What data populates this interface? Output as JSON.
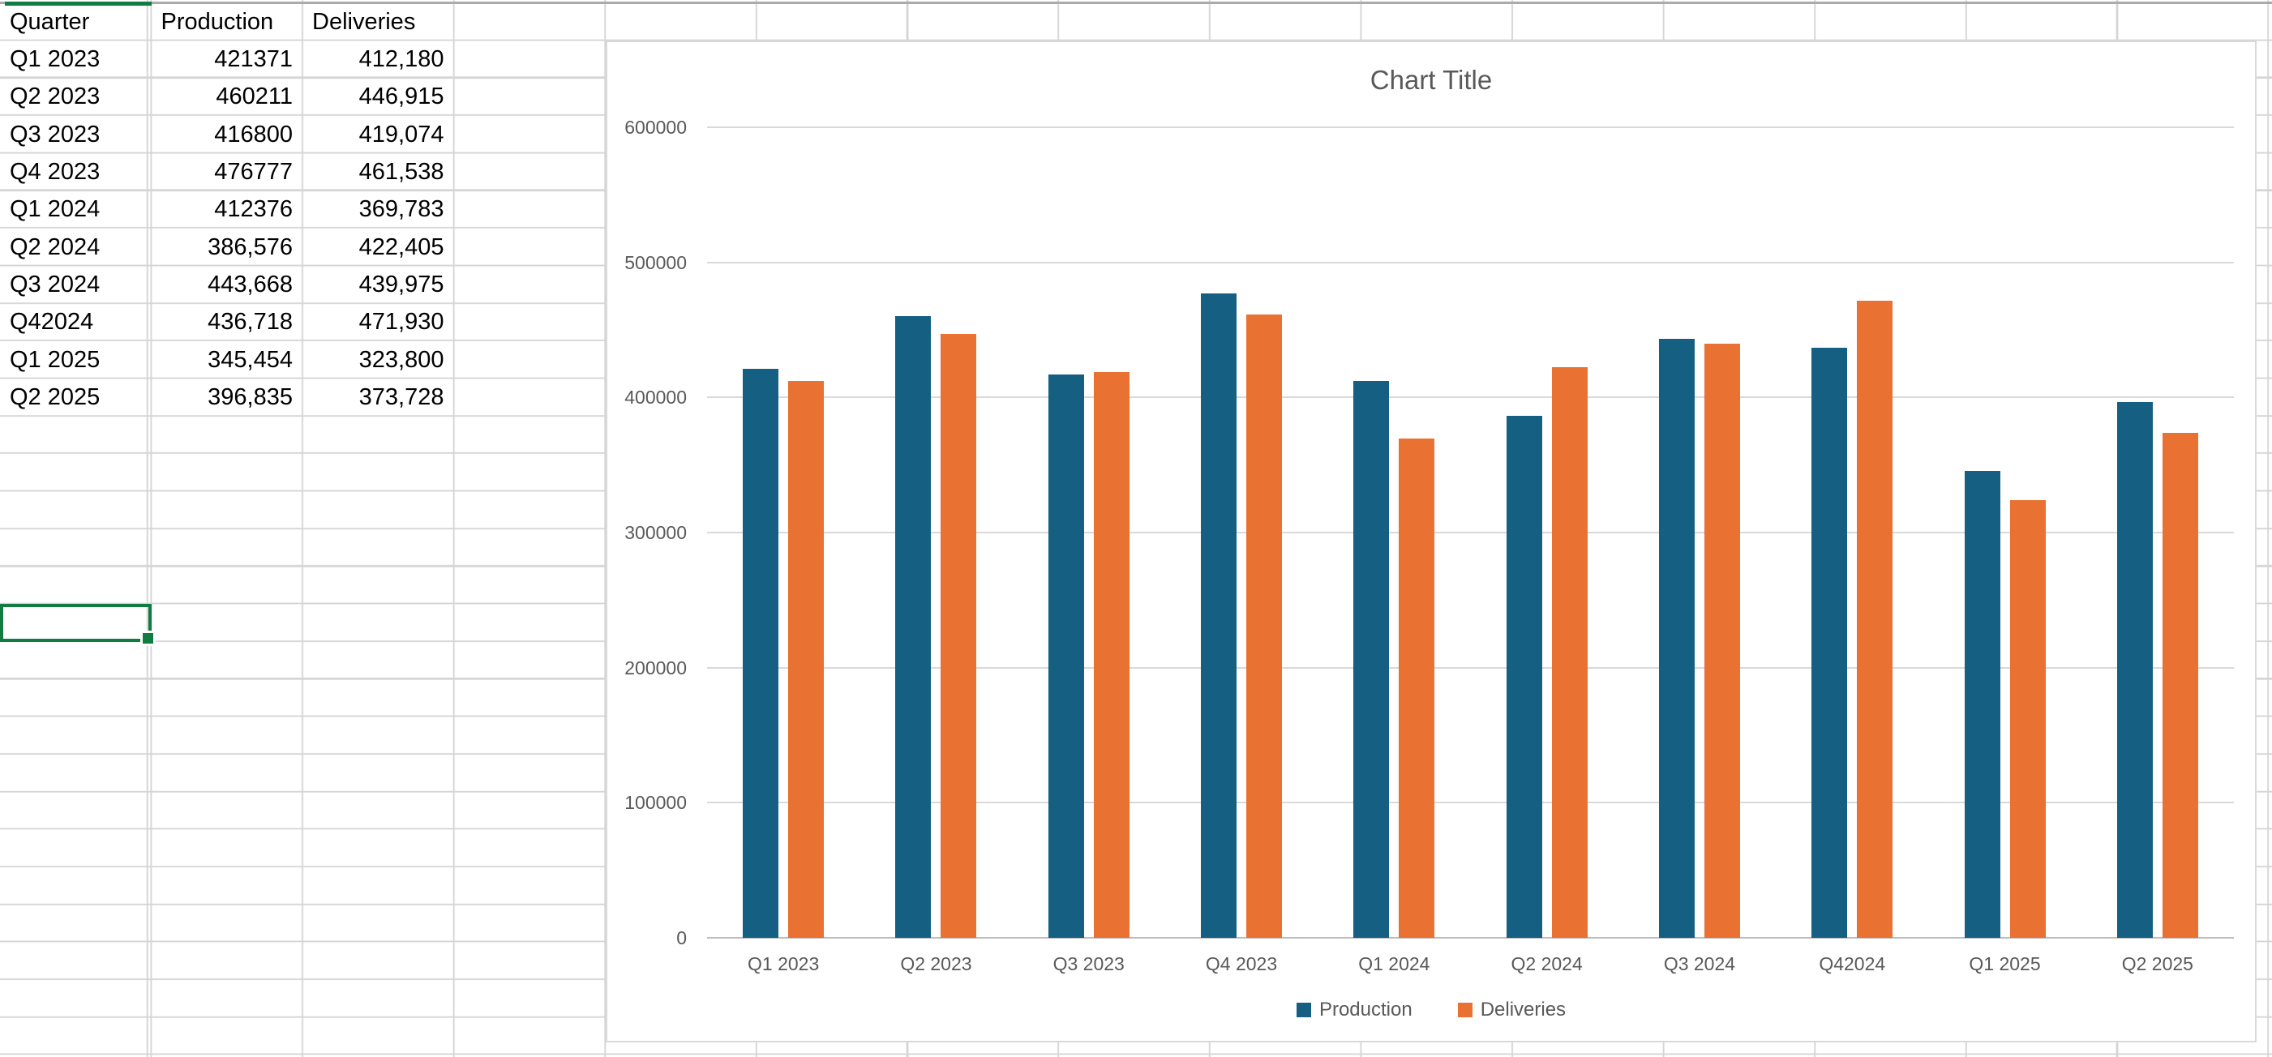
{
  "table": {
    "columns": [
      "Quarter",
      "Production",
      "Deliveries"
    ],
    "rows": [
      [
        "Q1 2023",
        "421371",
        "412,180"
      ],
      [
        "Q2 2023",
        "460211",
        "446,915"
      ],
      [
        "Q3 2023",
        "416800",
        "419,074"
      ],
      [
        "Q4 2023",
        "476777",
        "461,538"
      ],
      [
        "Q1 2024",
        "412376",
        "369,783"
      ],
      [
        "Q2 2024",
        "386,576",
        "422,405"
      ],
      [
        "Q3 2024",
        "443,668",
        "439,975"
      ],
      [
        "Q42024",
        "436,718",
        "471,930"
      ],
      [
        "Q1 2025",
        "345,454",
        "323,800"
      ],
      [
        "Q2 2025",
        "396,835",
        "373,728"
      ]
    ]
  },
  "chart_data": {
    "type": "bar",
    "title": "Chart Title",
    "categories": [
      "Q1 2023",
      "Q2 2023",
      "Q3 2023",
      "Q4 2023",
      "Q1 2024",
      "Q2 2024",
      "Q3 2024",
      "Q42024",
      "Q1 2025",
      "Q2 2025"
    ],
    "series": [
      {
        "name": "Production",
        "color": "#156082",
        "values": [
          421371,
          460211,
          416800,
          476777,
          412376,
          386576,
          443668,
          436718,
          345454,
          396835
        ]
      },
      {
        "name": "Deliveries",
        "color": "#E97132",
        "values": [
          412180,
          446915,
          419074,
          461538,
          369783,
          422405,
          439975,
          471930,
          323800,
          373728
        ]
      }
    ],
    "xlabel": "",
    "ylabel": "",
    "ylim": [
      0,
      600000
    ],
    "ytick_labels": [
      "600000",
      "500000",
      "400000",
      "300000",
      "200000",
      "100000",
      "0"
    ],
    "grid": "horizontal",
    "legend_position": "bottom"
  },
  "colors": {
    "selection_green": "#107C41",
    "axis_text": "#595959",
    "chart_gridline": "#D9D9D9",
    "axis_line": "#BFBFBF",
    "sheet_gridline": "#D5D5D5"
  }
}
